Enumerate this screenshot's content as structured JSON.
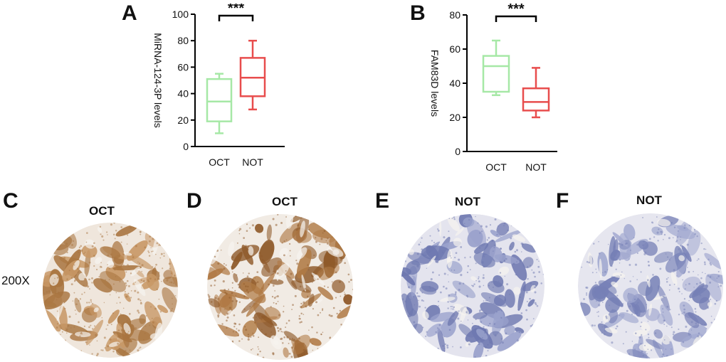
{
  "panels": {
    "a": "A",
    "b": "B",
    "c": "C",
    "d": "D",
    "e": "E",
    "f": "F"
  },
  "magnification": "200X",
  "ihc": [
    {
      "panel": "C",
      "label": "OCT",
      "stain": "#a8743f",
      "stain_light": "#c89866",
      "background": "#efe6dc"
    },
    {
      "panel": "D",
      "label": "OCT",
      "stain": "#8f5a2a",
      "stain_light": "#b07a45",
      "background": "#f1ebe4"
    },
    {
      "panel": "E",
      "label": "NOT",
      "stain": "#6e78b0",
      "stain_light": "#9aa2cc",
      "background": "#e4e4ee"
    },
    {
      "panel": "F",
      "label": "NOT",
      "stain": "#7680b6",
      "stain_light": "#a2a9d0",
      "background": "#e6e6ef"
    }
  ],
  "chart_data": [
    {
      "type": "box",
      "panel": "A",
      "ylabel": "MiRNA-124-3P levels",
      "ylim": [
        0,
        100
      ],
      "yticks": [
        0,
        20,
        40,
        60,
        80,
        100
      ],
      "categories": [
        "OCT",
        "NOT"
      ],
      "colors": [
        "#a6e8a6",
        "#e84d4d"
      ],
      "boxes": [
        {
          "min": 10,
          "q1": 19,
          "median": 34,
          "q3": 51,
          "max": 55
        },
        {
          "min": 28,
          "q1": 38,
          "median": 52,
          "q3": 67,
          "max": 80
        }
      ],
      "significance": "***"
    },
    {
      "type": "box",
      "panel": "B",
      "ylabel": "FAM83D levels",
      "ylim": [
        0,
        80
      ],
      "yticks": [
        0,
        20,
        40,
        60,
        80
      ],
      "categories": [
        "OCT",
        "NOT"
      ],
      "colors": [
        "#a6e8a6",
        "#e84d4d"
      ],
      "boxes": [
        {
          "min": 33,
          "q1": 35,
          "median": 50,
          "q3": 56,
          "max": 65
        },
        {
          "min": 20,
          "q1": 24,
          "median": 29,
          "q3": 37,
          "max": 49
        }
      ],
      "significance": "***"
    }
  ]
}
